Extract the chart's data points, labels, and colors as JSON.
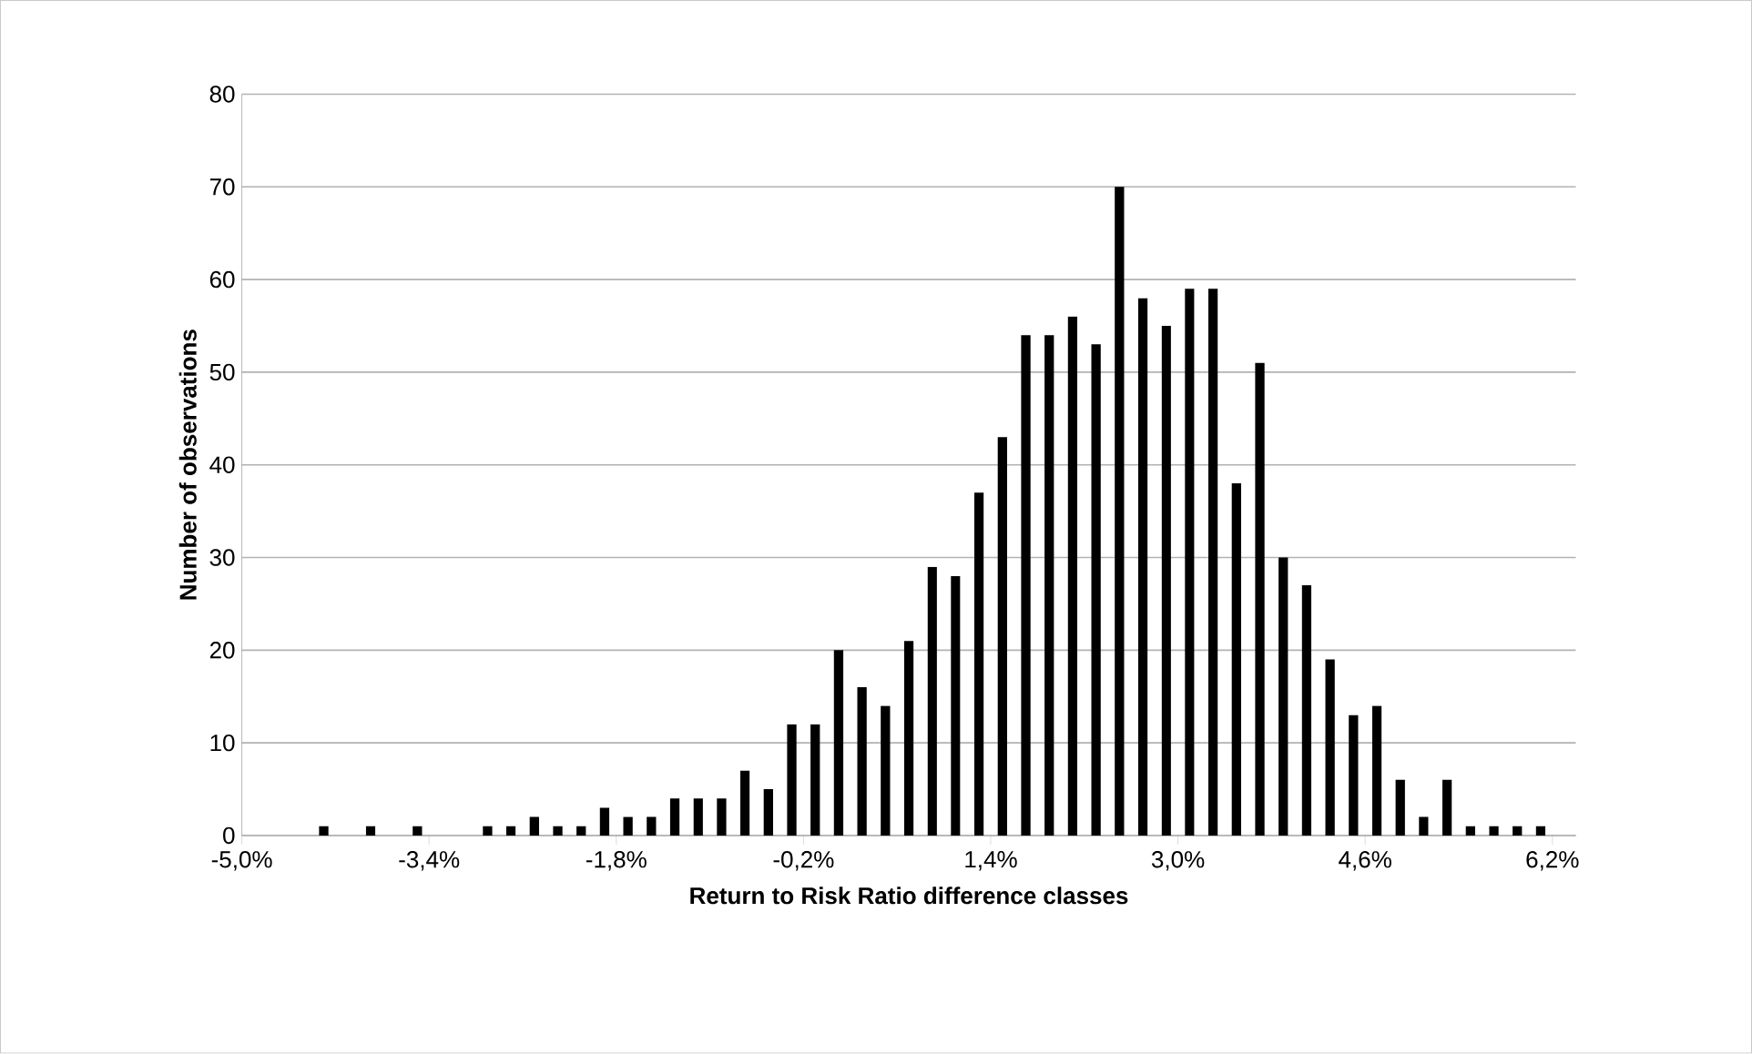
{
  "chart_data": {
    "type": "histogram",
    "xlabel": "Return to Risk Ratio difference classes",
    "ylabel": "Number of observations",
    "bins": [
      -5.0,
      -4.8,
      -4.6,
      -4.4,
      -4.2,
      -4.0,
      -3.8,
      -3.6,
      -3.4,
      -3.2,
      -3.0,
      -2.8,
      -2.6,
      -2.4,
      -2.2,
      -2.0,
      -1.8,
      -1.6,
      -1.4,
      -1.2,
      -1.0,
      -0.8,
      -0.6,
      -0.4,
      -0.2,
      0.0,
      0.2,
      0.4,
      0.6,
      0.8,
      1.0,
      1.2,
      1.4,
      1.6,
      1.8,
      2.0,
      2.2,
      2.4,
      2.6,
      2.8,
      3.0,
      3.2,
      3.4,
      3.6,
      3.8,
      4.0,
      4.2,
      4.4,
      4.6,
      4.8,
      5.0,
      5.2,
      5.4,
      5.6,
      5.8,
      6.0,
      6.2,
      6.4
    ],
    "values": [
      0,
      0,
      0,
      1,
      0,
      1,
      0,
      1,
      0,
      0,
      1,
      1,
      2,
      1,
      1,
      3,
      2,
      2,
      4,
      4,
      4,
      7,
      5,
      12,
      12,
      20,
      16,
      14,
      21,
      29,
      28,
      37,
      43,
      54,
      54,
      56,
      53,
      70,
      58,
      55,
      59,
      59,
      38,
      51,
      30,
      27,
      19,
      13,
      14,
      6,
      2,
      6,
      1,
      1,
      1,
      1,
      0
    ],
    "color": "#000000",
    "xlim": [
      -5.0,
      6.4
    ],
    "xticks": [
      {
        "value": -5.0,
        "label": "-5,0%"
      },
      {
        "value": -3.4,
        "label": "-3,4%"
      },
      {
        "value": -1.8,
        "label": "-1,8%"
      },
      {
        "value": -0.2,
        "label": "-0,2%"
      },
      {
        "value": 1.4,
        "label": "1,4%"
      },
      {
        "value": 3.0,
        "label": "3,0%"
      },
      {
        "value": 4.6,
        "label": "4,6%"
      },
      {
        "value": 6.2,
        "label": "6,2%"
      }
    ],
    "ylim": [
      0,
      80
    ],
    "yticks": [
      0,
      10,
      20,
      30,
      40,
      50,
      60,
      70,
      80
    ],
    "grid": "y"
  }
}
